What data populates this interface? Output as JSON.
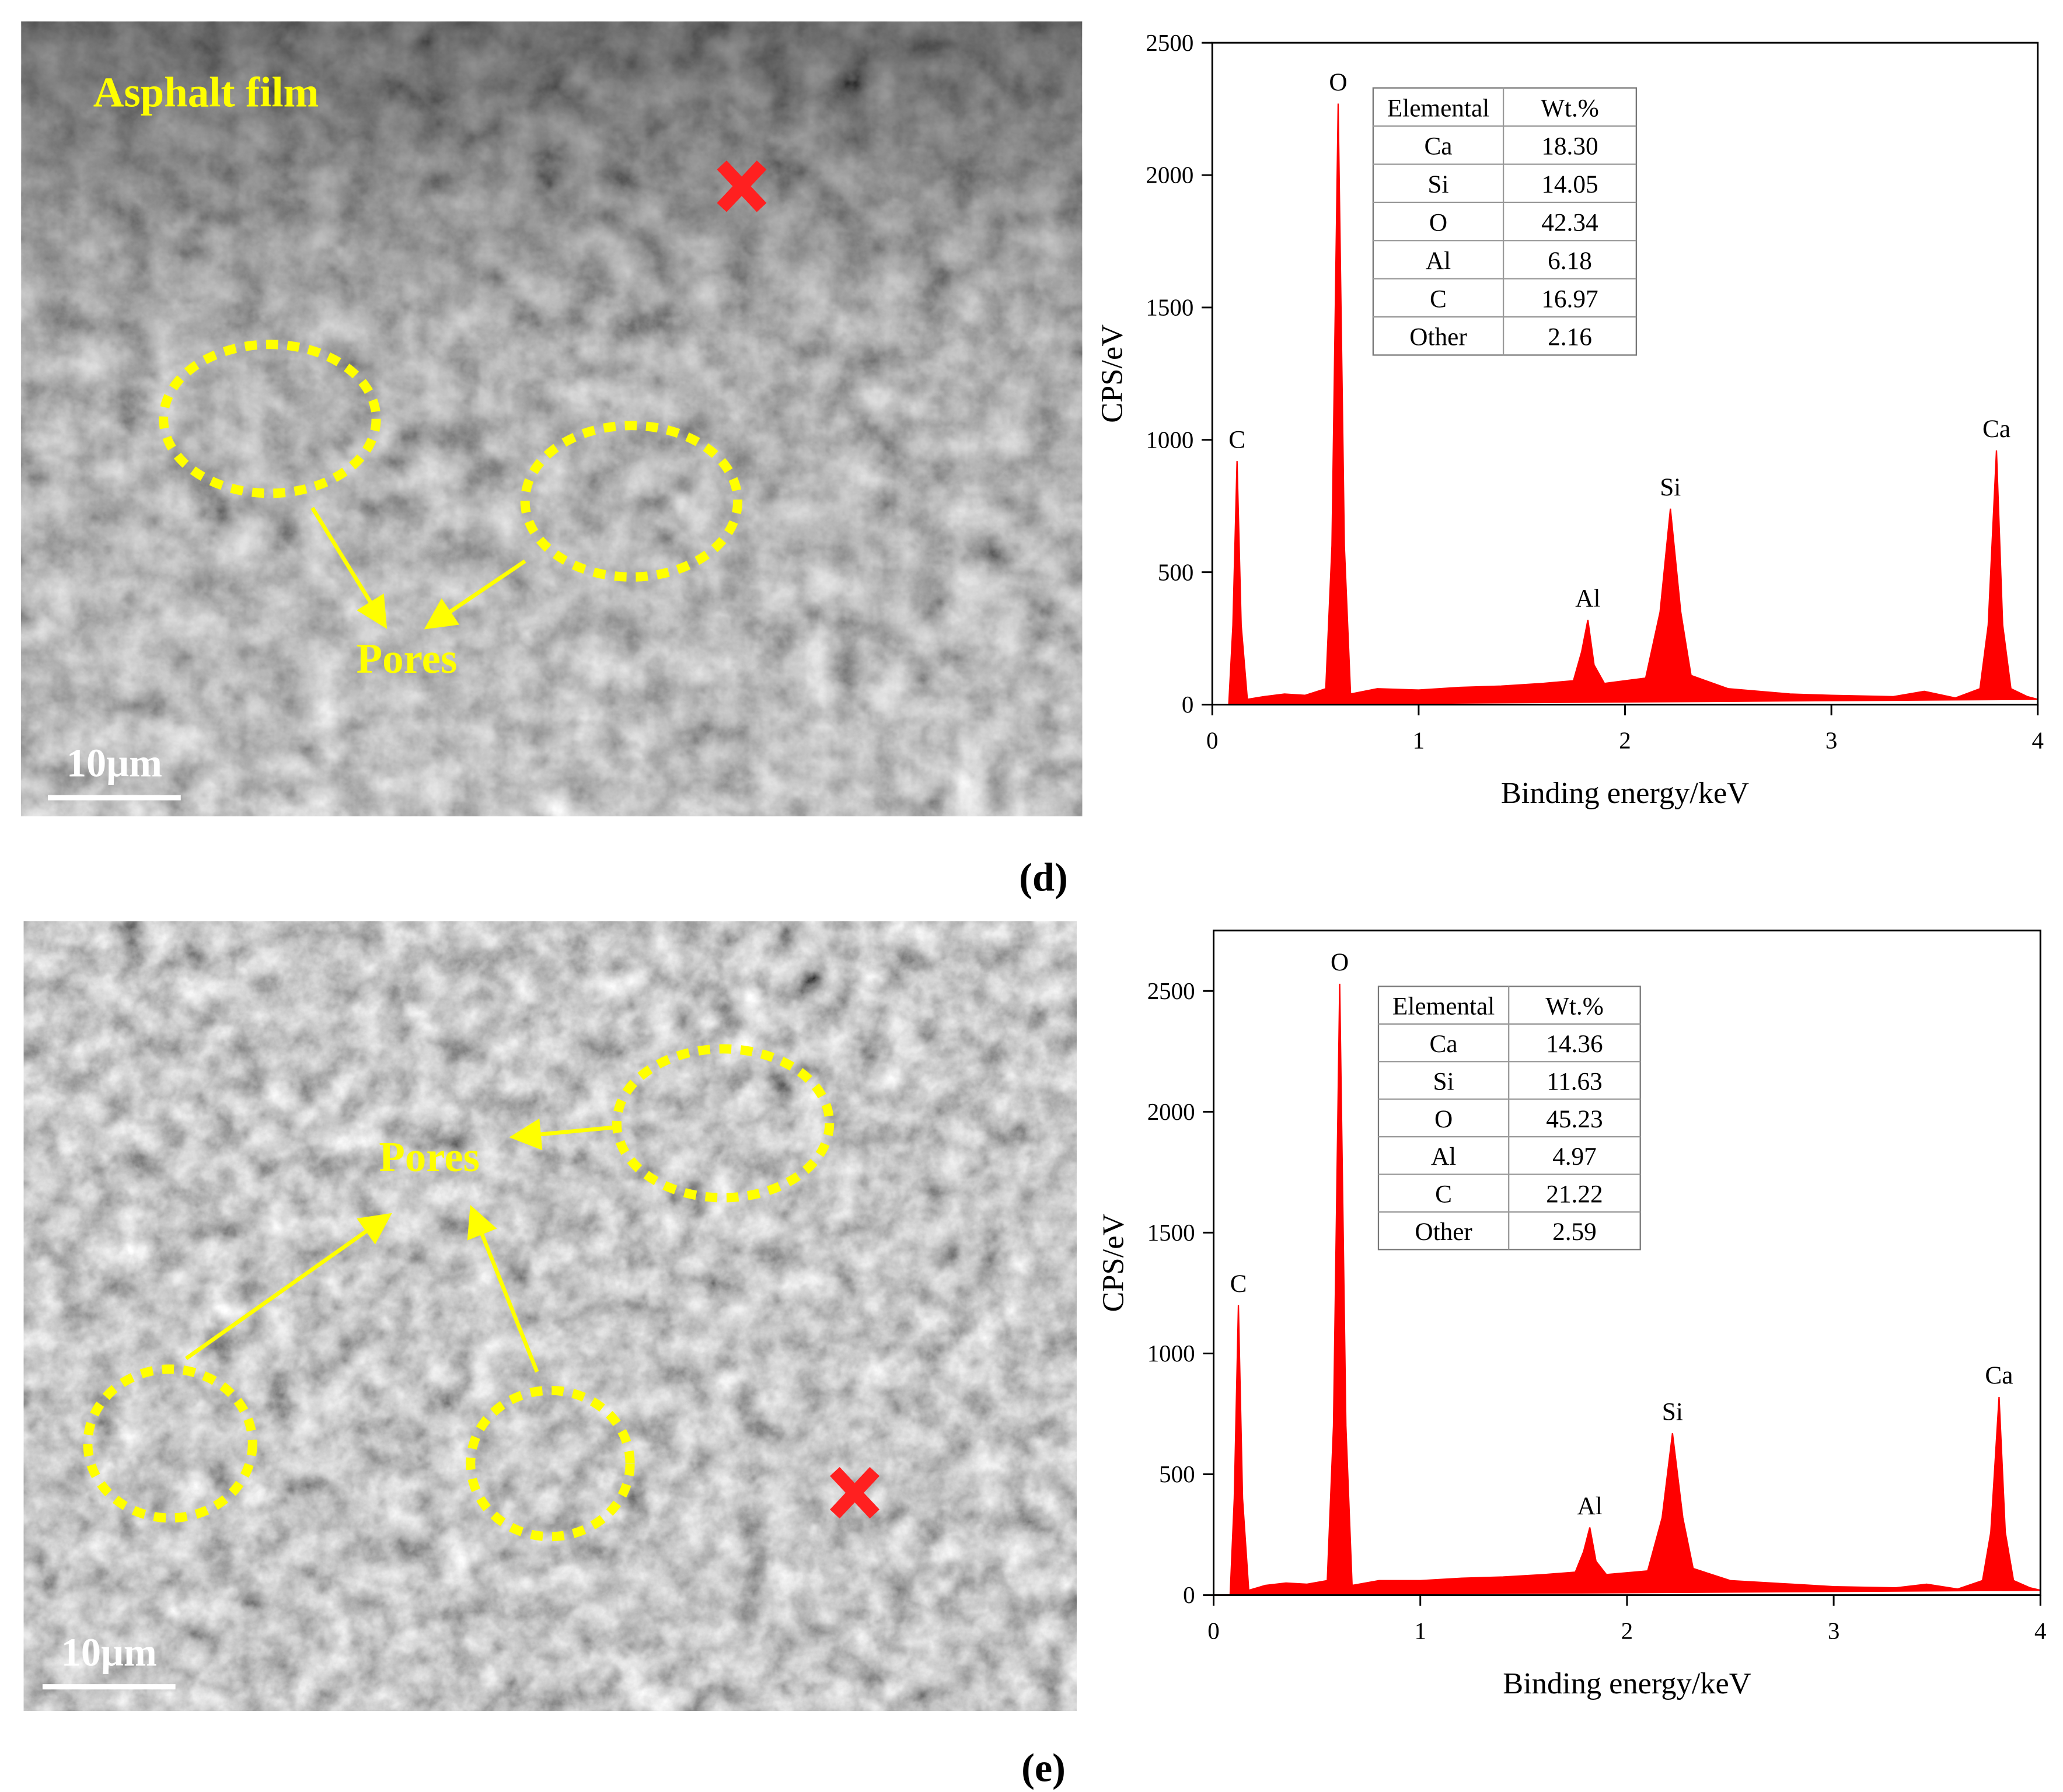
{
  "chart_data": [
    {
      "type": "area",
      "x_label": "Binding energy/keV",
      "y_label": "CPS/eV",
      "xlim": [
        0,
        4
      ],
      "xticks": [
        0,
        1,
        2,
        3,
        4
      ],
      "ylim": [
        0,
        2500
      ],
      "yticks": [
        0,
        500,
        1000,
        1500,
        2000,
        2500
      ],
      "x": [
        0,
        0.08,
        0.1,
        0.12,
        0.14,
        0.17,
        0.25,
        0.35,
        0.45,
        0.55,
        0.58,
        0.61,
        0.64,
        0.67,
        0.8,
        1.0,
        1.2,
        1.4,
        1.6,
        1.75,
        1.79,
        1.82,
        1.85,
        1.9,
        2.1,
        2.17,
        2.22,
        2.27,
        2.32,
        2.5,
        2.8,
        3.0,
        3.3,
        3.45,
        3.6,
        3.72,
        3.76,
        3.8,
        3.83,
        3.87,
        3.95,
        4.0
      ],
      "series": [
        {
          "color": "#ff0000",
          "values": [
            0,
            0,
            300,
            920,
            300,
            20,
            30,
            40,
            35,
            60,
            600,
            2270,
            600,
            40,
            60,
            55,
            65,
            70,
            80,
            90,
            200,
            320,
            150,
            80,
            100,
            350,
            740,
            350,
            110,
            60,
            40,
            35,
            30,
            50,
            25,
            60,
            300,
            960,
            300,
            60,
            30,
            20
          ]
        }
      ],
      "peak_labels": [
        {
          "label": "C",
          "x": 0.12
        },
        {
          "label": "O",
          "x": 0.61
        },
        {
          "label": "Al",
          "x": 1.82
        },
        {
          "label": "Si",
          "x": 2.22
        },
        {
          "label": "Ca",
          "x": 3.8
        }
      ],
      "table": {
        "columns": [
          "Elemental",
          "Wt.%"
        ],
        "rows": [
          [
            "Ca",
            "18.30"
          ],
          [
            "Si",
            "14.05"
          ],
          [
            "O",
            "42.34"
          ],
          [
            "Al",
            "6.18"
          ],
          [
            "C",
            "16.97"
          ],
          [
            "Other",
            "2.16"
          ]
        ]
      }
    },
    {
      "type": "area",
      "x_label": "Binding energy/keV",
      "y_label": "CPS/eV",
      "xlim": [
        0,
        4
      ],
      "xticks": [
        0,
        1,
        2,
        3,
        4
      ],
      "ylim": [
        0,
        2750
      ],
      "yticks": [
        0,
        500,
        1000,
        1500,
        2000,
        2500
      ],
      "x": [
        0,
        0.08,
        0.1,
        0.12,
        0.14,
        0.17,
        0.25,
        0.35,
        0.45,
        0.55,
        0.58,
        0.61,
        0.64,
        0.67,
        0.8,
        1.0,
        1.2,
        1.4,
        1.6,
        1.75,
        1.79,
        1.82,
        1.85,
        1.9,
        2.1,
        2.17,
        2.22,
        2.27,
        2.32,
        2.5,
        2.8,
        3.0,
        3.3,
        3.45,
        3.6,
        3.72,
        3.76,
        3.8,
        3.83,
        3.87,
        3.95,
        4.0
      ],
      "series": [
        {
          "color": "#ff0000",
          "values": [
            0,
            0,
            400,
            1200,
            400,
            20,
            40,
            50,
            45,
            60,
            700,
            2530,
            700,
            40,
            60,
            60,
            70,
            75,
            85,
            95,
            180,
            280,
            140,
            85,
            100,
            320,
            670,
            320,
            110,
            60,
            45,
            35,
            30,
            45,
            25,
            60,
            260,
            820,
            260,
            60,
            30,
            20
          ]
        }
      ],
      "peak_labels": [
        {
          "label": "C",
          "x": 0.12
        },
        {
          "label": "O",
          "x": 0.61
        },
        {
          "label": "Al",
          "x": 1.82
        },
        {
          "label": "Si",
          "x": 2.22
        },
        {
          "label": "Ca",
          "x": 3.8
        }
      ],
      "table": {
        "columns": [
          "Elemental",
          "Wt.%"
        ],
        "rows": [
          [
            "Ca",
            "14.36"
          ],
          [
            "Si",
            "11.63"
          ],
          [
            "O",
            "45.23"
          ],
          [
            "Al",
            "4.97"
          ],
          [
            "C",
            "21.22"
          ],
          [
            "Other",
            "2.59"
          ]
        ]
      }
    }
  ],
  "panels": [
    {
      "label": "(d)",
      "image": {
        "annotations": [
          "Asphalt film",
          "Pores"
        ],
        "scale_bar": "10μm"
      }
    },
    {
      "label": "(e)",
      "image": {
        "annotations": [
          "Pores"
        ],
        "scale_bar": "10μm"
      }
    }
  ]
}
